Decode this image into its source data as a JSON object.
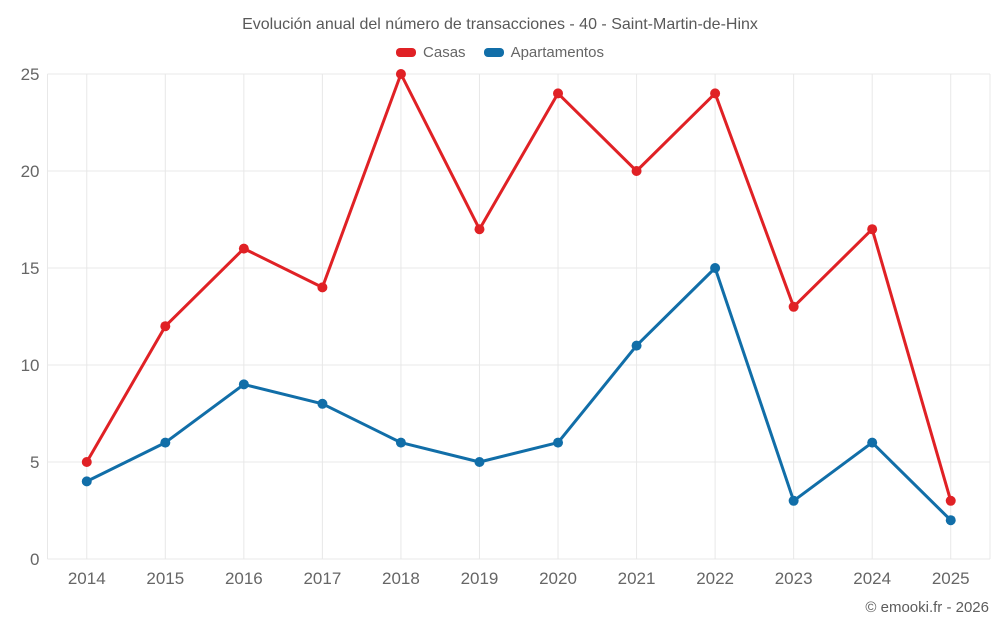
{
  "title": "Evolución anual del número de transacciones - 40 - Saint-Martin-de-Hinx",
  "footer": "© emooki.fr - 2026",
  "colors": {
    "grid": "#e8e8e8",
    "axis_label": "#666666",
    "title_text": "#595959",
    "casas_red": "#e02125",
    "apartamentos_blue": "#116ea8"
  },
  "chart_data": {
    "type": "line",
    "title": "Evolución anual del número de transacciones - 40 - Saint-Martin-de-Hinx",
    "categories": [
      "2014",
      "2015",
      "2016",
      "2017",
      "2018",
      "2019",
      "2020",
      "2021",
      "2022",
      "2023",
      "2024",
      "2025"
    ],
    "series": [
      {
        "name": "Casas",
        "color": "#e02125",
        "values": [
          5,
          12,
          16,
          14,
          25,
          17,
          24,
          20,
          24,
          13,
          17,
          3
        ]
      },
      {
        "name": "Apartamentos",
        "color": "#116ea8",
        "values": [
          4,
          6,
          9,
          8,
          6,
          5,
          6,
          11,
          15,
          3,
          6,
          2
        ]
      }
    ],
    "xlabel": "",
    "ylabel": "",
    "ylim": [
      0,
      25
    ],
    "yticks": [
      0,
      5,
      10,
      15,
      20,
      25
    ],
    "grid": true,
    "legend_position": "top",
    "marker": "circle"
  }
}
